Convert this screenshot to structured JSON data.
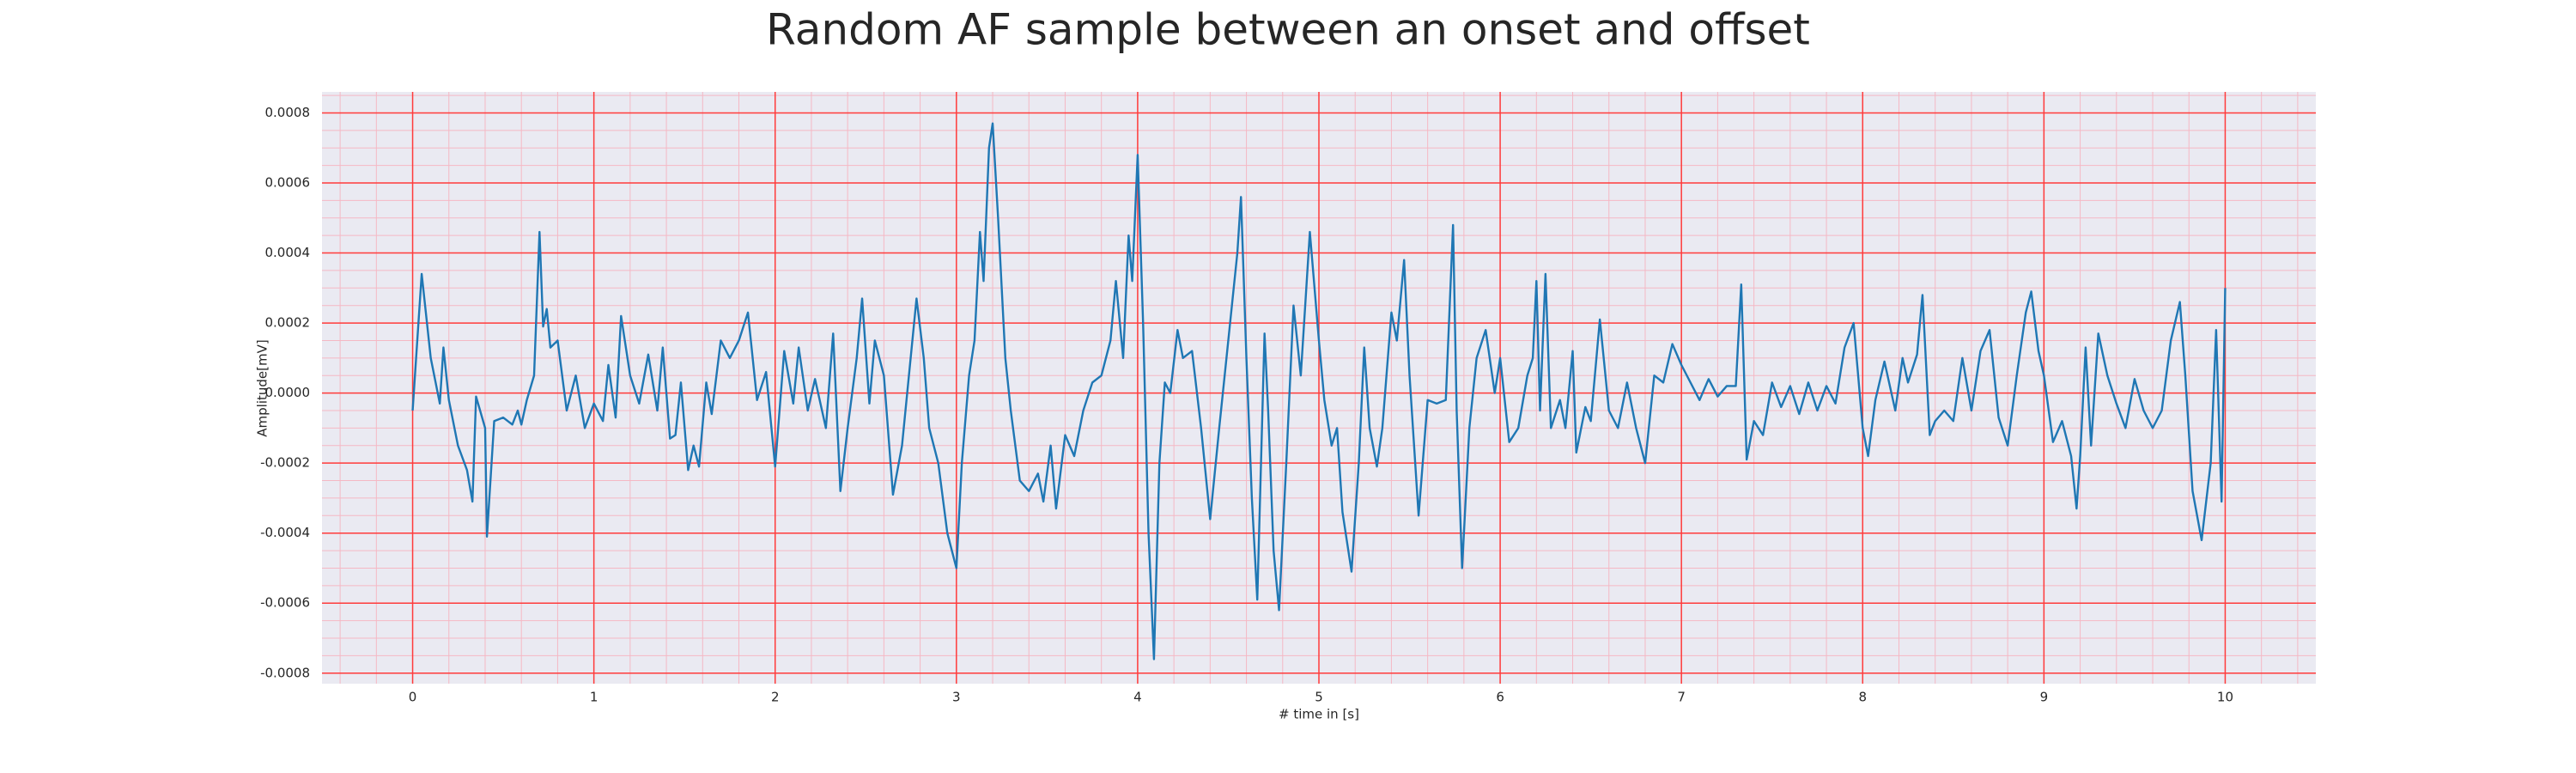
{
  "chart_data": {
    "type": "line",
    "title": "Random AF sample between an onset and offset",
    "x_label": "# time in [s]",
    "y_label": "Amplitude[mV]",
    "color": "#1f77b4",
    "grid": true,
    "minor_grid": true,
    "grid_color": "#ff3b3b",
    "minor_grid_color": "#f5b8c4",
    "background": "#eaeaf2",
    "xlim": [
      -0.5,
      10.5
    ],
    "ylim": [
      -0.00083,
      0.00086
    ],
    "xticks": [
      0,
      1,
      2,
      3,
      4,
      5,
      6,
      7,
      8,
      9,
      10
    ],
    "yticks": [
      -0.0008,
      -0.0006,
      -0.0004,
      -0.0002,
      {
        "value": 0,
        "label": "0.0000"
      },
      0.0002,
      0.0004,
      0.0006,
      0.0008
    ],
    "x": [
      0.0,
      0.05,
      0.1,
      0.15,
      0.17,
      0.2,
      0.25,
      0.3,
      0.33,
      0.35,
      0.4,
      0.41,
      0.45,
      0.5,
      0.55,
      0.58,
      0.6,
      0.63,
      0.67,
      0.7,
      0.72,
      0.74,
      0.76,
      0.8,
      0.85,
      0.9,
      0.95,
      1.0,
      1.05,
      1.08,
      1.12,
      1.15,
      1.2,
      1.25,
      1.3,
      1.35,
      1.38,
      1.42,
      1.45,
      1.48,
      1.52,
      1.55,
      1.58,
      1.62,
      1.65,
      1.7,
      1.75,
      1.8,
      1.85,
      1.9,
      1.95,
      2.0,
      2.05,
      2.1,
      2.13,
      2.18,
      2.22,
      2.28,
      2.32,
      2.36,
      2.4,
      2.45,
      2.48,
      2.52,
      2.55,
      2.6,
      2.65,
      2.7,
      2.78,
      2.82,
      2.85,
      2.9,
      2.95,
      3.0,
      3.03,
      3.07,
      3.1,
      3.13,
      3.15,
      3.18,
      3.2,
      3.23,
      3.27,
      3.3,
      3.35,
      3.4,
      3.45,
      3.48,
      3.52,
      3.55,
      3.6,
      3.65,
      3.7,
      3.75,
      3.8,
      3.85,
      3.88,
      3.92,
      3.95,
      3.97,
      4.0,
      4.03,
      4.06,
      4.09,
      4.12,
      4.15,
      4.18,
      4.22,
      4.25,
      4.3,
      4.35,
      4.4,
      4.45,
      4.5,
      4.55,
      4.57,
      4.6,
      4.63,
      4.66,
      4.7,
      4.72,
      4.75,
      4.78,
      4.82,
      4.86,
      4.9,
      4.95,
      5.0,
      5.03,
      5.07,
      5.1,
      5.13,
      5.18,
      5.22,
      5.25,
      5.28,
      5.32,
      5.35,
      5.4,
      5.43,
      5.47,
      5.5,
      5.55,
      5.6,
      5.65,
      5.7,
      5.74,
      5.76,
      5.79,
      5.83,
      5.87,
      5.92,
      5.97,
      6.0,
      6.05,
      6.1,
      6.15,
      6.18,
      6.2,
      6.22,
      6.25,
      6.28,
      6.33,
      6.36,
      6.4,
      6.42,
      6.47,
      6.5,
      6.55,
      6.6,
      6.65,
      6.7,
      6.75,
      6.8,
      6.85,
      6.9,
      6.95,
      7.0,
      7.05,
      7.1,
      7.15,
      7.2,
      7.25,
      7.3,
      7.33,
      7.36,
      7.4,
      7.45,
      7.5,
      7.55,
      7.6,
      7.65,
      7.7,
      7.75,
      7.8,
      7.85,
      7.9,
      7.95,
      8.0,
      8.03,
      8.07,
      8.12,
      8.18,
      8.22,
      8.25,
      8.3,
      8.33,
      8.37,
      8.4,
      8.45,
      8.5,
      8.55,
      8.6,
      8.65,
      8.7,
      8.75,
      8.8,
      8.85,
      8.9,
      8.93,
      8.97,
      9.0,
      9.05,
      9.1,
      9.15,
      9.18,
      9.2,
      9.23,
      9.26,
      9.3,
      9.35,
      9.4,
      9.45,
      9.5,
      9.55,
      9.6,
      9.65,
      9.7,
      9.75,
      9.78,
      9.82,
      9.87,
      9.92,
      9.95,
      9.98,
      10.0
    ],
    "values": [
      -5e-05,
      0.00034,
      0.0001,
      -3e-05,
      0.00013,
      -2e-05,
      -0.00015,
      -0.00022,
      -0.00031,
      -1e-05,
      -0.0001,
      -0.00041,
      -8e-05,
      -7e-05,
      -9e-05,
      -5e-05,
      -9e-05,
      -2e-05,
      5e-05,
      0.00046,
      0.00019,
      0.00024,
      0.00013,
      0.00015,
      -5e-05,
      5e-05,
      -0.0001,
      -3e-05,
      -8e-05,
      8e-05,
      -7e-05,
      0.00022,
      5e-05,
      -3e-05,
      0.00011,
      -5e-05,
      0.00013,
      -0.00013,
      -0.00012,
      3e-05,
      -0.00022,
      -0.00015,
      -0.00021,
      3e-05,
      -6e-05,
      0.00015,
      0.0001,
      0.00015,
      0.00023,
      -2e-05,
      6e-05,
      -0.00021,
      0.00012,
      -3e-05,
      0.00013,
      -5e-05,
      4e-05,
      -0.0001,
      0.00017,
      -0.00028,
      -0.0001,
      0.0001,
      0.00027,
      -3e-05,
      0.00015,
      5e-05,
      -0.00029,
      -0.00015,
      0.00027,
      0.0001,
      -0.0001,
      -0.0002,
      -0.0004,
      -0.0005,
      -0.0002,
      5e-05,
      0.00015,
      0.00046,
      0.00032,
      0.0007,
      0.00077,
      0.0005,
      0.0001,
      -5e-05,
      -0.00025,
      -0.00028,
      -0.00023,
      -0.00031,
      -0.00015,
      -0.00033,
      -0.00012,
      -0.00018,
      -5e-05,
      3e-05,
      5e-05,
      0.00015,
      0.00032,
      0.0001,
      0.00045,
      0.00032,
      0.00068,
      0.0002,
      -0.0004,
      -0.00076,
      -0.0002,
      3e-05,
      0.0,
      0.00018,
      0.0001,
      0.00012,
      -0.0001,
      -0.00036,
      -0.0001,
      0.00015,
      0.0004,
      0.00056,
      0.0001,
      -0.0003,
      -0.00059,
      0.00017,
      -5e-05,
      -0.00045,
      -0.00062,
      -0.0002,
      0.00025,
      5e-05,
      0.00046,
      0.00015,
      -2e-05,
      -0.00015,
      -0.0001,
      -0.00034,
      -0.00051,
      -0.0002,
      0.00013,
      -0.0001,
      -0.00021,
      -0.0001,
      0.00023,
      0.00015,
      0.00038,
      5e-05,
      -0.00035,
      -2e-05,
      -3e-05,
      -2e-05,
      0.00048,
      -5e-05,
      -0.0005,
      -0.0001,
      0.0001,
      0.00018,
      0.0,
      0.0001,
      -0.00014,
      -0.0001,
      5e-05,
      0.0001,
      0.00032,
      -5e-05,
      0.00034,
      -0.0001,
      -2e-05,
      -0.0001,
      0.00012,
      -0.00017,
      -4e-05,
      -8e-05,
      0.00021,
      -5e-05,
      -0.0001,
      3e-05,
      -0.0001,
      -0.0002,
      5e-05,
      3e-05,
      0.00014,
      8e-05,
      3e-05,
      -2e-05,
      4e-05,
      -1e-05,
      2e-05,
      2e-05,
      0.00031,
      -0.00019,
      -8e-05,
      -0.00012,
      3e-05,
      -4e-05,
      2e-05,
      -6e-05,
      3e-05,
      -5e-05,
      2e-05,
      -3e-05,
      0.00013,
      0.0002,
      -0.0001,
      -0.00018,
      -2e-05,
      9e-05,
      -5e-05,
      0.0001,
      3e-05,
      0.00011,
      0.00028,
      -0.00012,
      -8e-05,
      -5e-05,
      -8e-05,
      0.0001,
      -5e-05,
      0.00012,
      0.00018,
      -7e-05,
      -0.00015,
      5e-05,
      0.00023,
      0.00029,
      0.00012,
      5e-05,
      -0.00014,
      -8e-05,
      -0.00018,
      -0.00033,
      -0.00018,
      0.00013,
      -0.00015,
      0.00017,
      5e-05,
      -3e-05,
      -0.0001,
      4e-05,
      -5e-05,
      -0.0001,
      -5e-05,
      0.00015,
      0.00026,
      5e-05,
      -0.00028,
      -0.00042,
      -0.0002,
      0.00018,
      -0.00031,
      0.0003
    ]
  }
}
